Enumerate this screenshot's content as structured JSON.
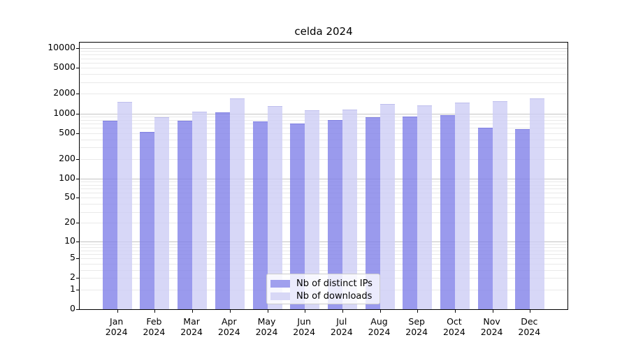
{
  "title": "celda 2024",
  "colors": {
    "ips_bar": "#a0a0ee",
    "downloads_bar": "#d8d8f6",
    "grid_major": "#c3c3c3",
    "grid_minor": "#e9e9e9",
    "axis": "#000000",
    "legend_border": "#cccccc"
  },
  "legend": {
    "items": [
      {
        "label": "Nb of distinct IPs",
        "color": "#a0a0ee"
      },
      {
        "label": "Nb of downloads",
        "color": "#d8d8f6"
      }
    ]
  },
  "y_axis": {
    "tick_labels": [
      "0",
      "1",
      "2",
      "5",
      "10",
      "20",
      "50",
      "100",
      "200",
      "500",
      "1000",
      "2000",
      "5000",
      "10000"
    ],
    "tick_values": [
      0,
      1,
      2,
      5,
      10,
      20,
      50,
      100,
      200,
      500,
      1000,
      2000,
      5000,
      10000
    ],
    "major_gridlines": [
      10,
      100,
      1000,
      10000
    ],
    "minor_gridlines": [
      1,
      2,
      3,
      4,
      5,
      6,
      7,
      8,
      9,
      20,
      30,
      40,
      50,
      60,
      70,
      80,
      90,
      200,
      300,
      400,
      500,
      600,
      700,
      800,
      900,
      2000,
      3000,
      4000,
      5000,
      6000,
      7000,
      8000,
      9000
    ]
  },
  "x_axis": {
    "months": [
      "Jan",
      "Feb",
      "Mar",
      "Apr",
      "May",
      "Jun",
      "Jul",
      "Aug",
      "Sep",
      "Oct",
      "Nov",
      "Dec"
    ],
    "year": "2024"
  },
  "chart_data": {
    "type": "bar",
    "title": "celda 2024",
    "categories": [
      "Jan 2024",
      "Feb 2024",
      "Mar 2024",
      "Apr 2024",
      "May 2024",
      "Jun 2024",
      "Jul 2024",
      "Aug 2024",
      "Sep 2024",
      "Oct 2024",
      "Nov 2024",
      "Dec 2024"
    ],
    "series": [
      {
        "name": "Nb of distinct IPs",
        "color": "#a0a0ee",
        "values": [
          770,
          520,
          770,
          1030,
          760,
          700,
          800,
          880,
          900,
          945,
          600,
          580
        ]
      },
      {
        "name": "Nb of downloads",
        "color": "#d8d8f6",
        "values": [
          1510,
          870,
          1070,
          1710,
          1290,
          1130,
          1140,
          1400,
          1330,
          1460,
          1550,
          1710
        ]
      }
    ],
    "xlabel": "",
    "ylabel": "",
    "yscale": "log10(value+1)",
    "ylim": [
      0,
      10000
    ],
    "grid": true,
    "legend_position": "lower center (inside plot)"
  }
}
